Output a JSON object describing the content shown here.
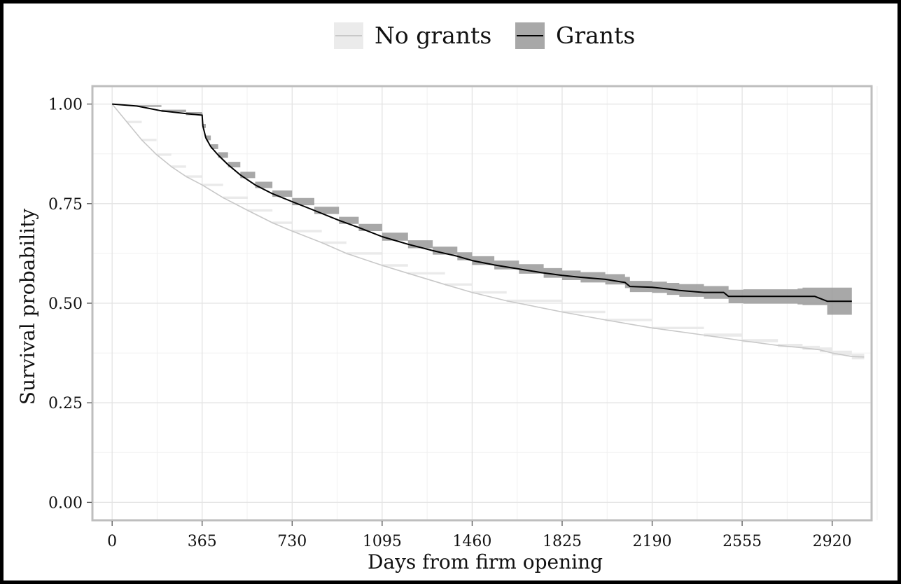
{
  "chart_data": {
    "type": "line",
    "title": "",
    "xlabel": "Days from firm opening",
    "ylabel": "Survival probability",
    "xlim": [
      -80,
      3080
    ],
    "ylim": [
      -0.045,
      1.045
    ],
    "x_ticks": [
      0,
      365,
      730,
      1095,
      1460,
      1825,
      2190,
      2555,
      2920
    ],
    "x_tick_labels": [
      "0",
      "365",
      "730",
      "1095",
      "1460",
      "1825",
      "2190",
      "2555",
      "2920"
    ],
    "y_ticks": [
      0,
      0.25,
      0.5,
      0.75,
      1.0
    ],
    "y_tick_labels": [
      "0.00",
      "0.25",
      "0.50",
      "0.75",
      "1.00"
    ],
    "grid": true,
    "legend_position": "top",
    "series": [
      {
        "name": "No grants",
        "color": "#c8c8c8",
        "band_color": "#e6e6e6",
        "x": [
          0,
          60,
          120,
          180,
          240,
          300,
          365,
          450,
          550,
          650,
          730,
          850,
          950,
          1095,
          1200,
          1350,
          1460,
          1600,
          1825,
          2000,
          2190,
          2400,
          2555,
          2700,
          2800,
          2870,
          2920,
          3000,
          3050
        ],
        "y": [
          1.0,
          0.955,
          0.91,
          0.873,
          0.843,
          0.818,
          0.797,
          0.765,
          0.733,
          0.702,
          0.681,
          0.652,
          0.625,
          0.595,
          0.575,
          0.547,
          0.527,
          0.506,
          0.478,
          0.458,
          0.438,
          0.42,
          0.406,
          0.394,
          0.388,
          0.383,
          0.375,
          0.366,
          0.365
        ],
        "ci_half_width": [
          0,
          0.003,
          0.003,
          0.003,
          0.003,
          0.003,
          0.003,
          0.003,
          0.003,
          0.003,
          0.003,
          0.003,
          0.003,
          0.003,
          0.003,
          0.003,
          0.003,
          0.003,
          0.003,
          0.003,
          0.003,
          0.004,
          0.004,
          0.004,
          0.005,
          0.006,
          0.006,
          0.007,
          0.007
        ]
      },
      {
        "name": "Grants",
        "color": "#000000",
        "band_color": "#999999",
        "x": [
          0,
          100,
          200,
          300,
          365,
          368,
          380,
          400,
          430,
          470,
          520,
          580,
          650,
          730,
          820,
          920,
          1000,
          1095,
          1200,
          1300,
          1400,
          1460,
          1550,
          1650,
          1750,
          1825,
          1900,
          2000,
          2080,
          2100,
          2190,
          2250,
          2300,
          2400,
          2480,
          2500,
          2560,
          2600,
          2700,
          2780,
          2800,
          2850,
          2900,
          2960,
          3000
        ],
        "y": [
          1.0,
          0.995,
          0.983,
          0.976,
          0.972,
          0.945,
          0.915,
          0.893,
          0.872,
          0.848,
          0.822,
          0.797,
          0.775,
          0.755,
          0.733,
          0.708,
          0.69,
          0.667,
          0.648,
          0.632,
          0.618,
          0.607,
          0.596,
          0.586,
          0.576,
          0.57,
          0.565,
          0.56,
          0.552,
          0.542,
          0.54,
          0.536,
          0.532,
          0.527,
          0.527,
          0.517,
          0.517,
          0.517,
          0.517,
          0.517,
          0.517,
          0.517,
          0.505,
          0.505,
          0.505
        ],
        "ci_half_width": [
          0,
          0.002,
          0.003,
          0.004,
          0.004,
          0.005,
          0.006,
          0.006,
          0.007,
          0.007,
          0.008,
          0.008,
          0.008,
          0.009,
          0.009,
          0.009,
          0.009,
          0.01,
          0.01,
          0.01,
          0.01,
          0.011,
          0.011,
          0.012,
          0.012,
          0.012,
          0.013,
          0.013,
          0.014,
          0.014,
          0.014,
          0.015,
          0.016,
          0.016,
          0.016,
          0.017,
          0.018,
          0.018,
          0.018,
          0.02,
          0.022,
          0.022,
          0.034,
          0.034,
          0.034
        ]
      }
    ]
  }
}
